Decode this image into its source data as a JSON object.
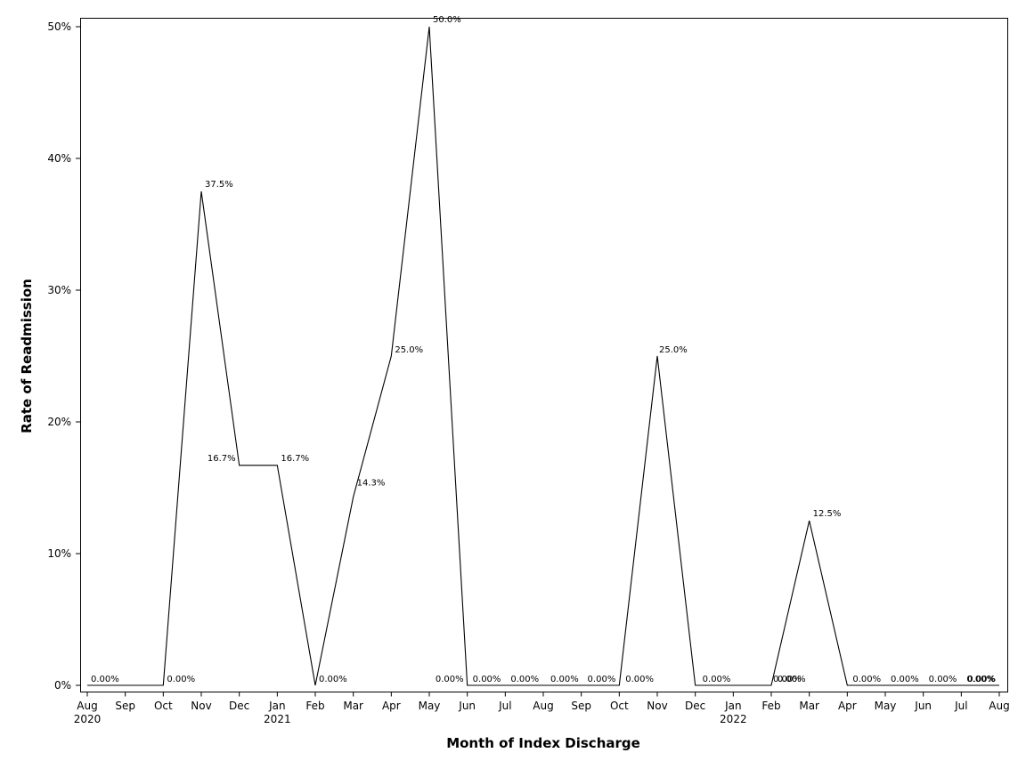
{
  "chart_data": {
    "type": "line",
    "xlabel": "Month of Index Discharge",
    "ylabel": "Rate of Readmission",
    "ylim": [
      0,
      50
    ],
    "y_ticks": [
      0,
      10,
      20,
      30,
      40,
      50
    ],
    "y_tick_labels": [
      "0%",
      "10%",
      "20%",
      "30%",
      "40%",
      "50%"
    ],
    "grid": false,
    "legend": "none",
    "x": [
      "Aug 2020",
      "Sep 2020",
      "Oct 2020",
      "Nov 2020",
      "Dec 2020",
      "Jan 2021",
      "Feb 2021",
      "Mar 2021",
      "Apr 2021",
      "May 2021",
      "Jun 2021",
      "Jul 2021",
      "Aug 2021",
      "Sep 2021",
      "Oct 2021",
      "Nov 2021",
      "Dec 2021",
      "Jan 2022",
      "Feb 2022",
      "Mar 2022",
      "Apr 2022",
      "May 2022",
      "Jun 2022",
      "Jul 2022",
      "Aug 2022"
    ],
    "x_tick_labels": [
      {
        "month": "Aug",
        "year": "2020"
      },
      {
        "month": "Sep",
        "year": ""
      },
      {
        "month": "Oct",
        "year": ""
      },
      {
        "month": "Nov",
        "year": ""
      },
      {
        "month": "Dec",
        "year": ""
      },
      {
        "month": "Jan",
        "year": "2021"
      },
      {
        "month": "Feb",
        "year": ""
      },
      {
        "month": "Mar",
        "year": ""
      },
      {
        "month": "Apr",
        "year": ""
      },
      {
        "month": "May",
        "year": ""
      },
      {
        "month": "Jun",
        "year": ""
      },
      {
        "month": "Jul",
        "year": ""
      },
      {
        "month": "Aug",
        "year": ""
      },
      {
        "month": "Sep",
        "year": ""
      },
      {
        "month": "Oct",
        "year": ""
      },
      {
        "month": "Nov",
        "year": ""
      },
      {
        "month": "Dec",
        "year": ""
      },
      {
        "month": "Jan",
        "year": "2022"
      },
      {
        "month": "Feb",
        "year": ""
      },
      {
        "month": "Mar",
        "year": ""
      },
      {
        "month": "Apr",
        "year": ""
      },
      {
        "month": "May",
        "year": ""
      },
      {
        "month": "Jun",
        "year": ""
      },
      {
        "month": "Jul",
        "year": ""
      },
      {
        "month": "Aug",
        "year": ""
      }
    ],
    "points": [
      {
        "x": "2020-08-01",
        "y": 0,
        "label": "0.00%"
      },
      {
        "x": "2020-10-01",
        "y": 0,
        "label": "0.00%"
      },
      {
        "x": "2020-11-01",
        "y": 37.5,
        "label": "37.5%"
      },
      {
        "x": "2020-12-01",
        "y": 16.7,
        "label": "16.7%"
      },
      {
        "x": "2021-01-01",
        "y": 16.7,
        "label": "16.7%"
      },
      {
        "x": "2021-02-01",
        "y": 0,
        "label": "0.00%"
      },
      {
        "x": "2021-03-01",
        "y": 14.3,
        "label": "14.3%"
      },
      {
        "x": "2021-04-01",
        "y": 25.0,
        "label": "25.0%"
      },
      {
        "x": "2021-05-01",
        "y": 50.0,
        "label": "50.0%"
      },
      {
        "x": "2021-06-01",
        "y": 0,
        "label": "0.00%"
      },
      {
        "x": "2021-07-01",
        "y": 0,
        "label": "0.00%"
      },
      {
        "x": "2021-08-01",
        "y": 0,
        "label": "0.00%"
      },
      {
        "x": "2021-09-01",
        "y": 0,
        "label": "0.00%"
      },
      {
        "x": "2021-11-01",
        "y": 0,
        "label": "0.00%"
      },
      {
        "x": "2021-11-01",
        "y": 25.0,
        "label": "25.0%"
      },
      {
        "x": "2021-12-01",
        "y": 0,
        "label": "0.00%"
      },
      {
        "x": "2021-12-01",
        "y": 0,
        "label": "0.00%"
      },
      {
        "x": "2022-02-01",
        "y": 0,
        "label": "0.00%"
      },
      {
        "x": "2022-03-01",
        "y": 12.5,
        "label": "12.5%"
      },
      {
        "x": "2022-04-01",
        "y": 0,
        "label": "0.00%"
      },
      {
        "x": "2022-04-01",
        "y": 0,
        "label": "0.00%"
      },
      {
        "x": "2022-05-01",
        "y": 0,
        "label": "0.00%"
      },
      {
        "x": "2022-06-01",
        "y": 0,
        "label": "0.00%"
      },
      {
        "x": "2022-07-01",
        "y": 0,
        "label": "0.00%"
      },
      {
        "x": "2022-08-01",
        "y": 0,
        "label": "0.00%"
      }
    ]
  }
}
